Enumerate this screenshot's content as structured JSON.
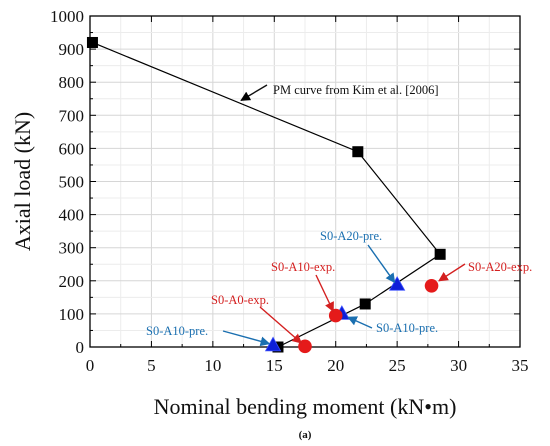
{
  "chart_data": {
    "type": "scatter",
    "xlabel": "Nominal bending moment (kN•m)",
    "ylabel": "Axial load (kN)",
    "xlim": [
      0,
      35
    ],
    "ylim": [
      0,
      1000
    ],
    "xticks": [
      0,
      5,
      10,
      15,
      20,
      25,
      30,
      35
    ],
    "yticks": [
      0,
      100,
      200,
      300,
      400,
      500,
      600,
      700,
      800,
      900,
      1000
    ],
    "grid": true,
    "caption": "(a)",
    "colors": {
      "curve": "#000000",
      "prediction": "#0d1fd8",
      "experiment": "#e51a1a",
      "blue_text": "#1a6fb0",
      "red_text": "#d42020"
    },
    "series": [
      {
        "name": "PM curve from Kim et al. [2006]",
        "style": "line-square",
        "x": [
          0.2,
          21.8,
          28.5,
          22.4,
          15.3
        ],
        "y": [
          920,
          590,
          280,
          130,
          0
        ]
      },
      {
        "style": "triangle",
        "x": [
          14.9,
          20.5,
          25.0
        ],
        "y": [
          5,
          100,
          188
        ]
      },
      {
        "style": "circle",
        "x": [
          17.5,
          20.0,
          27.8
        ],
        "y": [
          2,
          95,
          185
        ]
      }
    ],
    "annotations": [
      {
        "text": "PM curve from Kim et al. [2006]",
        "color": "black",
        "point": [
          12.3,
          745
        ]
      },
      {
        "text": "S0-A20-pre.",
        "color": "blue",
        "point": [
          24.8,
          195
        ]
      },
      {
        "text": "S0-A10-exp.",
        "color": "red",
        "point": [
          19.8,
          108
        ]
      },
      {
        "text": "S0-A0-exp.",
        "color": "red",
        "point": [
          17.2,
          12
        ]
      },
      {
        "text": "S0-A10-pre.",
        "color": "blue",
        "point": [
          14.6,
          10
        ]
      },
      {
        "text": "S0-A10-pre.",
        "color": "blue",
        "point": [
          21.0,
          90
        ]
      },
      {
        "text": "S0-A20-exp.",
        "color": "red",
        "point": [
          28.4,
          200
        ]
      }
    ]
  }
}
